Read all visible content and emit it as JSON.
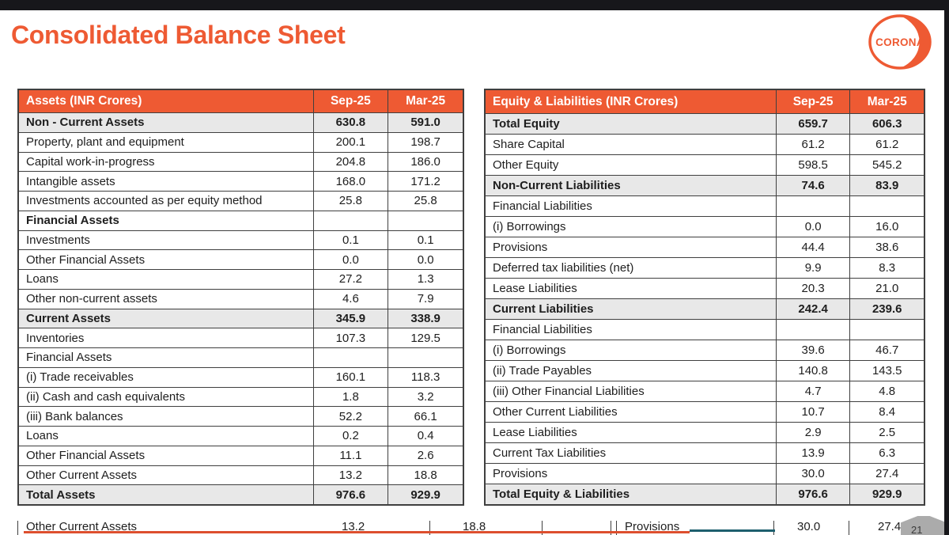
{
  "title": "Consolidated Balance Sheet",
  "logo": {
    "text": "CORONA",
    "color": "#EE5A33"
  },
  "colors": {
    "accent_orange": "#EE5A33",
    "subtotal_row_gray": "#E8E8E8",
    "table_border": "#3f3f3f",
    "top_bottom_bar_black": "#17171b",
    "bottom_rule_orange": "#DD4F2E",
    "bottom_rule_teal": "#1D5F6E"
  },
  "tables": [
    {
      "header": [
        "Assets (INR Crores)",
        "Sep-25",
        "Mar-25"
      ],
      "rows": [
        {
          "label": "Non - Current Assets",
          "sep": "630.8",
          "mar": "591.0",
          "bold": true,
          "shaded": true
        },
        {
          "label": "Property, plant and equipment",
          "sep": "200.1",
          "mar": "198.7",
          "bold": false,
          "shaded": false
        },
        {
          "label": "Capital work-in-progress",
          "sep": "204.8",
          "mar": "186.0",
          "bold": false,
          "shaded": false
        },
        {
          "label": "Intangible assets",
          "sep": "168.0",
          "mar": "171.2",
          "bold": false,
          "shaded": false
        },
        {
          "label": "Investments accounted as per equity method",
          "sep": "25.8",
          "mar": "25.8",
          "bold": false,
          "shaded": false
        },
        {
          "label": "Financial Assets",
          "sep": "",
          "mar": "",
          "bold": true,
          "shaded": false
        },
        {
          "label": "Investments",
          "sep": "0.1",
          "mar": "0.1",
          "bold": false,
          "shaded": false
        },
        {
          "label": "Other Financial Assets",
          "sep": "0.0",
          "mar": "0.0",
          "bold": false,
          "shaded": false
        },
        {
          "label": "Loans",
          "sep": "27.2",
          "mar": "1.3",
          "bold": false,
          "shaded": false
        },
        {
          "label": "Other non-current assets",
          "sep": "4.6",
          "mar": "7.9",
          "bold": false,
          "shaded": false
        },
        {
          "label": "Current Assets",
          "sep": "345.9",
          "mar": "338.9",
          "bold": true,
          "shaded": true
        },
        {
          "label": "Inventories",
          "sep": "107.3",
          "mar": "129.5",
          "bold": false,
          "shaded": false
        },
        {
          "label": "Financial Assets",
          "sep": "",
          "mar": "",
          "bold": false,
          "shaded": false
        },
        {
          "label": "(i) Trade receivables",
          "sep": "160.1",
          "mar": "118.3",
          "bold": false,
          "shaded": false
        },
        {
          "label": "(ii) Cash and cash equivalents",
          "sep": "1.8",
          "mar": "3.2",
          "bold": false,
          "shaded": false
        },
        {
          "label": "(iii) Bank balances",
          "sep": "52.2",
          "mar": "66.1",
          "bold": false,
          "shaded": false
        },
        {
          "label": "Loans",
          "sep": "0.2",
          "mar": "0.4",
          "bold": false,
          "shaded": false
        },
        {
          "label": "Other Financial Assets",
          "sep": "11.1",
          "mar": "2.6",
          "bold": false,
          "shaded": false
        },
        {
          "label": "Other Current Assets",
          "sep": "13.2",
          "mar": "18.8",
          "bold": false,
          "shaded": false
        },
        {
          "label": "Total Assets",
          "sep": "976.6",
          "mar": "929.9",
          "bold": true,
          "shaded": true
        }
      ]
    },
    {
      "header": [
        "Equity & Liabilities (INR Crores)",
        "Sep-25",
        "Mar-25"
      ],
      "rows": [
        {
          "label": "Total Equity",
          "sep": "659.7",
          "mar": "606.3",
          "bold": true,
          "shaded": true
        },
        {
          "label": "Share Capital",
          "sep": "61.2",
          "mar": "61.2",
          "bold": false,
          "shaded": false
        },
        {
          "label": "Other Equity",
          "sep": "598.5",
          "mar": "545.2",
          "bold": false,
          "shaded": false
        },
        {
          "label": "Non-Current Liabilities",
          "sep": "74.6",
          "mar": "83.9",
          "bold": true,
          "shaded": true
        },
        {
          "label": "Financial Liabilities",
          "sep": "",
          "mar": "",
          "bold": false,
          "shaded": false
        },
        {
          "label": "(i) Borrowings",
          "sep": "0.0",
          "mar": "16.0",
          "bold": false,
          "shaded": false
        },
        {
          "label": "Provisions",
          "sep": "44.4",
          "mar": "38.6",
          "bold": false,
          "shaded": false
        },
        {
          "label": "Deferred tax liabilities (net)",
          "sep": "9.9",
          "mar": "8.3",
          "bold": false,
          "shaded": false
        },
        {
          "label": "Lease Liabilities",
          "sep": "20.3",
          "mar": "21.0",
          "bold": false,
          "shaded": false
        },
        {
          "label": "Current Liabilities",
          "sep": "242.4",
          "mar": "239.6",
          "bold": true,
          "shaded": true
        },
        {
          "label": "Financial Liabilities",
          "sep": "",
          "mar": "",
          "bold": false,
          "shaded": false
        },
        {
          "label": "(i) Borrowings",
          "sep": "39.6",
          "mar": "46.7",
          "bold": false,
          "shaded": false
        },
        {
          "label": "(ii) Trade Payables",
          "sep": "140.8",
          "mar": "143.5",
          "bold": false,
          "shaded": false
        },
        {
          "label": "(iii) Other Financial Liabilities",
          "sep": "4.7",
          "mar": "4.8",
          "bold": false,
          "shaded": false
        },
        {
          "label": "Other Current Liabilities",
          "sep": "10.7",
          "mar": "8.4",
          "bold": false,
          "shaded": false
        },
        {
          "label": "Lease Liabilities",
          "sep": "2.9",
          "mar": "2.5",
          "bold": false,
          "shaded": false
        },
        {
          "label": "Current Tax Liabilities",
          "sep": "13.9",
          "mar": "6.3",
          "bold": false,
          "shaded": false
        },
        {
          "label": "Provisions",
          "sep": "30.0",
          "mar": "27.4",
          "bold": false,
          "shaded": false
        },
        {
          "label": "Total Equity & Liabilities",
          "sep": "976.6",
          "mar": "929.9",
          "bold": true,
          "shaded": true
        }
      ]
    }
  ],
  "bottom_strip": {
    "left_label": "Other Current Assets",
    "left_value_1": "13.2",
    "left_value_2": "18.8",
    "right_label": "Provisions",
    "right_value_1": "30.0",
    "right_value_2": "27.4",
    "page_number": "21"
  }
}
